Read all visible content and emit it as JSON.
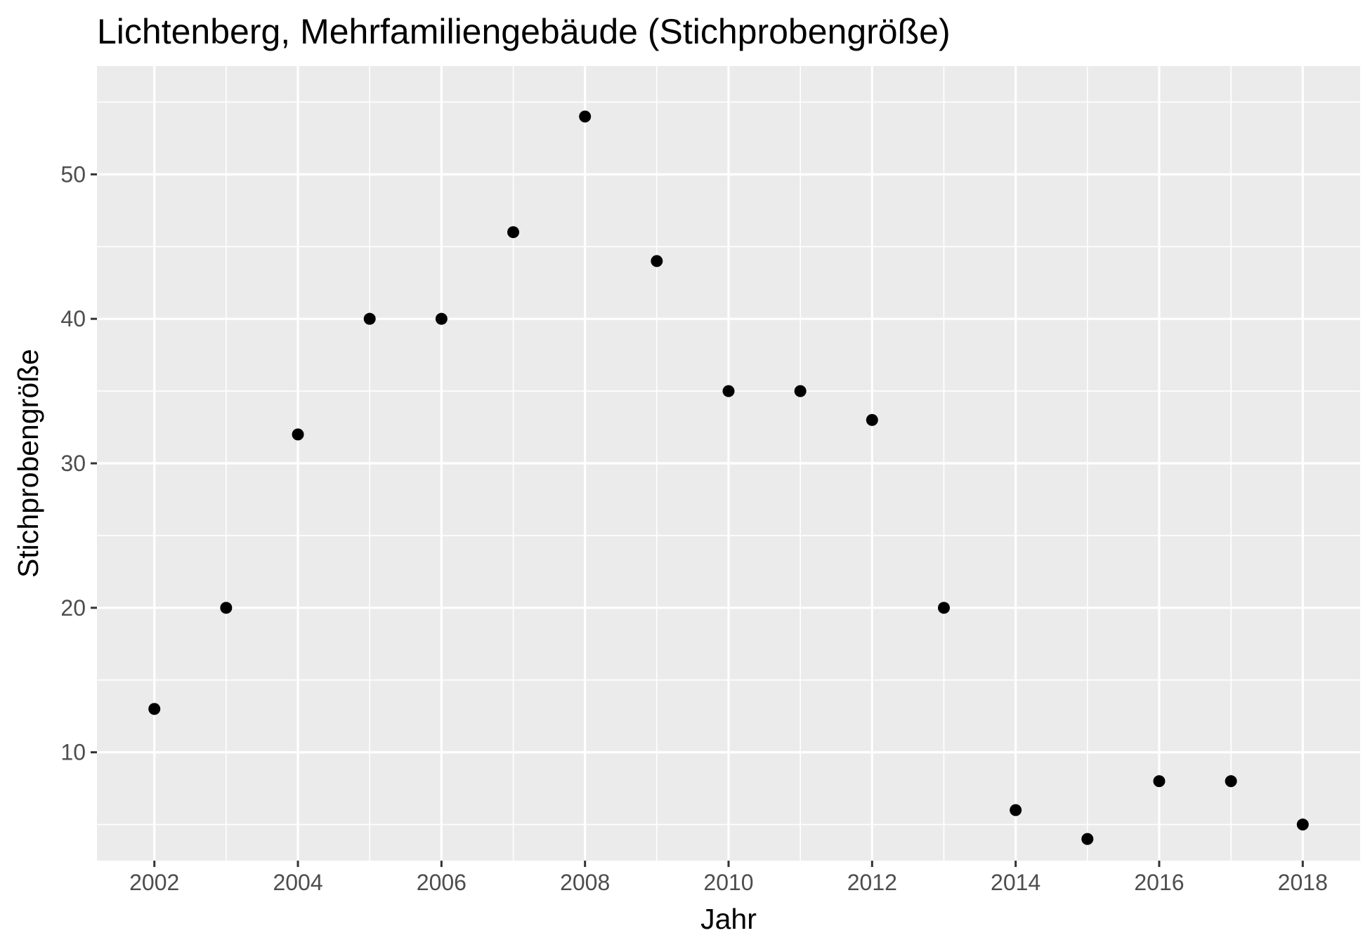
{
  "chart_data": {
    "type": "scatter",
    "title": "Lichtenberg, Mehrfamiliengebäude (Stichprobengröße)",
    "xlabel": "Jahr",
    "ylabel": "Stichprobengröße",
    "x": [
      2002,
      2003,
      2004,
      2005,
      2006,
      2007,
      2008,
      2009,
      2010,
      2011,
      2012,
      2013,
      2014,
      2015,
      2016,
      2017,
      2018
    ],
    "y": [
      13,
      20,
      32,
      40,
      40,
      46,
      54,
      44,
      35,
      35,
      33,
      20,
      6,
      4,
      8,
      8,
      5
    ],
    "xlim": [
      2001.2,
      2018.8
    ],
    "ylim": [
      2.5,
      57.5
    ],
    "x_ticks": [
      2002,
      2004,
      2006,
      2008,
      2010,
      2012,
      2014,
      2016,
      2018
    ],
    "x_tick_labels": [
      "2002",
      "2004",
      "2006",
      "2008",
      "2010",
      "2012",
      "2014",
      "2016",
      "2018"
    ],
    "y_ticks": [
      10,
      20,
      30,
      40,
      50
    ],
    "y_tick_labels": [
      "10",
      "20",
      "30",
      "40",
      "50"
    ],
    "grid": true,
    "legend": "none",
    "colors": {
      "panel": "#ebebeb",
      "grid": "#ffffff",
      "point": "#000000",
      "tick": "#333333"
    }
  }
}
